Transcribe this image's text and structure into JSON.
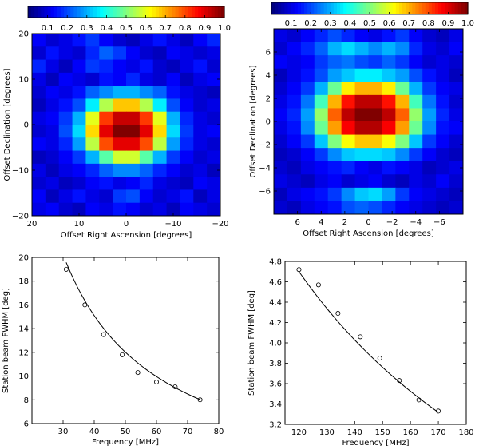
{
  "chart_data": [
    {
      "type": "heatmap",
      "panel": "top-left",
      "colorbar": {
        "ticks": [
          "0.1",
          "0.2",
          "0.3",
          "0.4",
          "0.5",
          "0.6",
          "0.7",
          "0.8",
          "0.9",
          "1.0"
        ],
        "range": [
          0.0,
          1.0
        ]
      },
      "xlabel": "Offset Right Ascension [degrees]",
      "ylabel": "Offset Declination [degrees]",
      "xlim": [
        20,
        -20
      ],
      "ylim": [
        -20,
        20
      ],
      "x_ticks": [
        "20",
        "10",
        "0",
        "−10",
        "−20"
      ],
      "y_ticks": [
        "20",
        "10",
        "0",
        "−10",
        "−20"
      ],
      "grid_size": [
        14,
        14
      ],
      "beam": {
        "center_ra": 0.5,
        "center_dec": 0.0,
        "fwhm_deg": 14.0
      },
      "values": [
        [
          0.12,
          0.08,
          0.1,
          0.14,
          0.18,
          0.12,
          0.08,
          0.06,
          0.1,
          0.14,
          0.1,
          0.06,
          0.12,
          0.16
        ],
        [
          0.08,
          0.14,
          0.1,
          0.08,
          0.16,
          0.22,
          0.18,
          0.12,
          0.08,
          0.06,
          0.12,
          0.1,
          0.08,
          0.1
        ],
        [
          0.16,
          0.1,
          0.06,
          0.12,
          0.18,
          0.16,
          0.12,
          0.1,
          0.14,
          0.08,
          0.06,
          0.1,
          0.14,
          0.08
        ],
        [
          0.1,
          0.06,
          0.12,
          0.1,
          0.08,
          0.14,
          0.12,
          0.16,
          0.1,
          0.08,
          0.12,
          0.06,
          0.1,
          0.12
        ],
        [
          0.08,
          0.12,
          0.1,
          0.14,
          0.22,
          0.26,
          0.3,
          0.3,
          0.26,
          0.22,
          0.14,
          0.1,
          0.08,
          0.06
        ],
        [
          0.06,
          0.1,
          0.14,
          0.2,
          0.36,
          0.55,
          0.68,
          0.68,
          0.55,
          0.36,
          0.2,
          0.12,
          0.08,
          0.1
        ],
        [
          0.1,
          0.12,
          0.18,
          0.3,
          0.6,
          0.82,
          0.93,
          0.93,
          0.82,
          0.6,
          0.3,
          0.16,
          0.1,
          0.08
        ],
        [
          0.08,
          0.1,
          0.2,
          0.34,
          0.66,
          0.9,
          1.0,
          1.0,
          0.9,
          0.66,
          0.34,
          0.18,
          0.1,
          0.12
        ],
        [
          0.12,
          0.1,
          0.16,
          0.28,
          0.56,
          0.8,
          0.9,
          0.9,
          0.8,
          0.56,
          0.28,
          0.16,
          0.1,
          0.08
        ],
        [
          0.06,
          0.08,
          0.12,
          0.18,
          0.3,
          0.46,
          0.58,
          0.58,
          0.46,
          0.3,
          0.18,
          0.12,
          0.08,
          0.1
        ],
        [
          0.1,
          0.06,
          0.1,
          0.12,
          0.16,
          0.22,
          0.26,
          0.26,
          0.22,
          0.16,
          0.12,
          0.08,
          0.1,
          0.06
        ],
        [
          0.08,
          0.1,
          0.06,
          0.08,
          0.12,
          0.14,
          0.1,
          0.12,
          0.16,
          0.1,
          0.08,
          0.06,
          0.12,
          0.1
        ],
        [
          0.12,
          0.06,
          0.1,
          0.14,
          0.1,
          0.08,
          0.18,
          0.2,
          0.12,
          0.08,
          0.1,
          0.14,
          0.06,
          0.1
        ],
        [
          0.1,
          0.12,
          0.08,
          0.06,
          0.12,
          0.1,
          0.14,
          0.12,
          0.08,
          0.1,
          0.06,
          0.12,
          0.1,
          0.08
        ]
      ]
    },
    {
      "type": "heatmap",
      "panel": "top-right",
      "colorbar": {
        "ticks": [
          "0.1",
          "0.2",
          "0.3",
          "0.4",
          "0.5",
          "0.6",
          "0.7",
          "0.8",
          "0.9",
          "1.0"
        ],
        "range": [
          0.0,
          1.0
        ]
      },
      "xlabel": "Offset Right Ascension [degrees]",
      "ylabel": "Offset Declination [degrees]",
      "xlim": [
        8,
        -8
      ],
      "ylim": [
        -8,
        8
      ],
      "x_ticks": [
        "6",
        "4",
        "2",
        "0",
        "−2",
        "−4",
        "−6"
      ],
      "y_ticks": [
        "6",
        "4",
        "2",
        "0",
        "−2",
        "−4",
        "−6"
      ],
      "grid_size": [
        14,
        14
      ],
      "beam": {
        "center_ra": 0.0,
        "center_dec": 0.0,
        "fwhm_deg": 4.0
      },
      "values": [
        [
          0.1,
          0.08,
          0.12,
          0.16,
          0.2,
          0.16,
          0.12,
          0.1,
          0.14,
          0.18,
          0.12,
          0.08,
          0.06,
          0.1
        ],
        [
          0.08,
          0.12,
          0.16,
          0.22,
          0.3,
          0.34,
          0.3,
          0.26,
          0.3,
          0.26,
          0.16,
          0.1,
          0.08,
          0.12
        ],
        [
          0.12,
          0.1,
          0.12,
          0.18,
          0.22,
          0.24,
          0.2,
          0.18,
          0.22,
          0.18,
          0.12,
          0.08,
          0.1,
          0.08
        ],
        [
          0.06,
          0.1,
          0.14,
          0.2,
          0.28,
          0.32,
          0.36,
          0.36,
          0.32,
          0.28,
          0.2,
          0.14,
          0.1,
          0.06
        ],
        [
          0.08,
          0.12,
          0.18,
          0.3,
          0.48,
          0.64,
          0.7,
          0.7,
          0.64,
          0.48,
          0.3,
          0.18,
          0.12,
          0.1
        ],
        [
          0.1,
          0.14,
          0.24,
          0.44,
          0.7,
          0.86,
          0.94,
          0.94,
          0.86,
          0.7,
          0.44,
          0.24,
          0.14,
          0.08
        ],
        [
          0.12,
          0.16,
          0.28,
          0.52,
          0.78,
          0.94,
          1.0,
          1.0,
          0.94,
          0.78,
          0.52,
          0.28,
          0.16,
          0.1
        ],
        [
          0.1,
          0.14,
          0.26,
          0.48,
          0.72,
          0.88,
          0.95,
          0.95,
          0.88,
          0.72,
          0.48,
          0.26,
          0.14,
          0.12
        ],
        [
          0.08,
          0.12,
          0.18,
          0.32,
          0.5,
          0.62,
          0.68,
          0.68,
          0.62,
          0.5,
          0.32,
          0.18,
          0.12,
          0.08
        ],
        [
          0.06,
          0.08,
          0.12,
          0.18,
          0.26,
          0.32,
          0.34,
          0.34,
          0.32,
          0.26,
          0.18,
          0.12,
          0.08,
          0.06
        ],
        [
          0.08,
          0.06,
          0.1,
          0.12,
          0.14,
          0.16,
          0.12,
          0.1,
          0.14,
          0.12,
          0.1,
          0.06,
          0.08,
          0.1
        ],
        [
          0.1,
          0.08,
          0.06,
          0.1,
          0.12,
          0.08,
          0.1,
          0.12,
          0.08,
          0.06,
          0.1,
          0.08,
          0.12,
          0.08
        ],
        [
          0.06,
          0.1,
          0.12,
          0.14,
          0.18,
          0.26,
          0.32,
          0.34,
          0.28,
          0.18,
          0.12,
          0.1,
          0.08,
          0.06
        ],
        [
          0.08,
          0.06,
          0.1,
          0.12,
          0.14,
          0.2,
          0.22,
          0.2,
          0.16,
          0.12,
          0.1,
          0.08,
          0.06,
          0.08
        ]
      ]
    },
    {
      "type": "scatter",
      "panel": "bottom-left",
      "xlabel": "Frequency [MHz]",
      "ylabel": "Station beam FWHM [deg]",
      "xlim": [
        20,
        80
      ],
      "ylim": [
        6,
        20
      ],
      "x_ticks": [
        30,
        40,
        50,
        60,
        70,
        80
      ],
      "y_ticks": [
        6,
        8,
        10,
        12,
        14,
        16,
        18,
        20
      ],
      "points": {
        "x": [
          31,
          37,
          43,
          49,
          54,
          60,
          66,
          74
        ],
        "y": [
          19.0,
          16.0,
          13.5,
          11.8,
          10.3,
          9.5,
          9.1,
          8.0
        ]
      },
      "fit": {
        "form": "a/f + c",
        "a": 616.8,
        "c": -0.32,
        "x_range": [
          31,
          74
        ]
      }
    },
    {
      "type": "scatter",
      "panel": "bottom-right",
      "xlabel": "Frequency [MHz]",
      "ylabel": "Station beam FWHM [deg]",
      "xlim": [
        115,
        180
      ],
      "ylim": [
        3.2,
        4.8
      ],
      "x_ticks": [
        120,
        130,
        140,
        150,
        160,
        170,
        180
      ],
      "y_ticks": [
        3.2,
        3.4,
        3.6,
        3.8,
        4.0,
        4.2,
        4.4,
        4.6,
        4.8
      ],
      "y_decimals": 1,
      "points": {
        "x": [
          120,
          127,
          134,
          142,
          149,
          156,
          163,
          170
        ],
        "y": [
          4.72,
          4.57,
          4.29,
          4.06,
          3.85,
          3.63,
          3.44,
          3.33
        ]
      },
      "fit": {
        "form": "a/f + c",
        "a": 564.0,
        "c": 0.0,
        "x_range": [
          120,
          170
        ]
      }
    }
  ]
}
